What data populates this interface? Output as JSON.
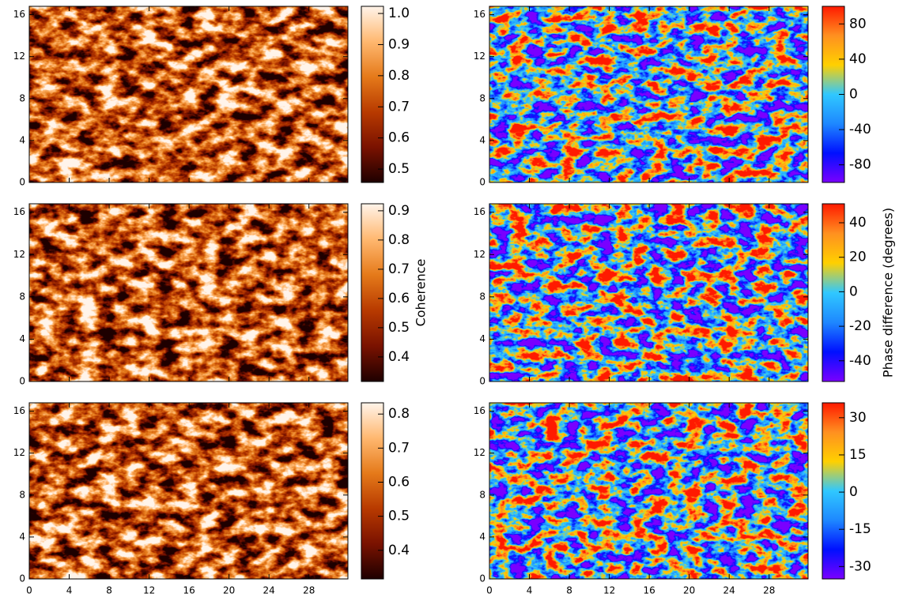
{
  "chart_data": [
    {
      "type": "heatmap",
      "xlim": [
        0,
        31.9
      ],
      "ylim": [
        0,
        16.8
      ],
      "xticks": [
        0,
        4,
        8,
        12,
        16,
        20,
        24,
        28
      ],
      "yticks": [
        0,
        4,
        8,
        12,
        16
      ],
      "show_xtick_labels": false,
      "colormap": [
        "#1e0000",
        "#7a1200",
        "#b83a00",
        "#e57a1a",
        "#ffb870",
        "#fff4ea"
      ],
      "clim": [
        0.457,
        1.023
      ],
      "cticks": [
        {
          "value": 1.0,
          "label": "1.0"
        },
        0.9,
        0.8,
        0.7,
        0.6,
        0.5
      ]
    },
    {
      "type": "heatmap",
      "xlim": [
        0,
        31.9
      ],
      "ylim": [
        0,
        16.8
      ],
      "xticks": [
        0,
        4,
        8,
        12,
        16,
        20,
        24,
        28
      ],
      "yticks": [
        0,
        4,
        8,
        12,
        16
      ],
      "show_xtick_labels": false,
      "colormap": [
        "#7a00ff",
        "#0010ff",
        "#1e88ff",
        "#30c8ff",
        "#ffd000",
        "#ff9020",
        "#ff1a00"
      ],
      "clim": [
        -100,
        100
      ],
      "cticks": [
        80,
        40,
        0,
        -40,
        -80
      ]
    },
    {
      "type": "heatmap",
      "xlim": [
        0,
        31.9
      ],
      "ylim": [
        0,
        16.8
      ],
      "xticks": [
        0,
        4,
        8,
        12,
        16,
        20,
        24,
        28
      ],
      "yticks": [
        0,
        4,
        8,
        12,
        16
      ],
      "show_xtick_labels": false,
      "colormap": [
        "#1e0000",
        "#7a1200",
        "#b83a00",
        "#e57a1a",
        "#ffb870",
        "#fff4ea"
      ],
      "clim": [
        0.316,
        0.924
      ],
      "cticks": [
        0.9,
        0.8,
        0.7,
        0.6,
        0.5,
        0.4
      ],
      "colorbar_label": "Coherence"
    },
    {
      "type": "heatmap",
      "xlim": [
        0,
        31.9
      ],
      "ylim": [
        0,
        16.8
      ],
      "xticks": [
        0,
        4,
        8,
        12,
        16,
        20,
        24,
        28
      ],
      "yticks": [
        0,
        4,
        8,
        12,
        16
      ],
      "show_xtick_labels": false,
      "colormap": [
        "#7a00ff",
        "#0010ff",
        "#1e88ff",
        "#30c8ff",
        "#ffd000",
        "#ff9020",
        "#ff1a00"
      ],
      "clim": [
        -52,
        51
      ],
      "cticks": [
        40,
        20,
        0,
        -20,
        -40
      ],
      "colorbar_label": "Phase difference (degrees)"
    },
    {
      "type": "heatmap",
      "xlim": [
        0,
        31.9
      ],
      "ylim": [
        0,
        16.8
      ],
      "xticks": [
        0,
        4,
        8,
        12,
        16,
        20,
        24,
        28
      ],
      "yticks": [
        0,
        4,
        8,
        12,
        16
      ],
      "show_xtick_labels": true,
      "colormap": [
        "#1e0000",
        "#7a1200",
        "#b83a00",
        "#e57a1a",
        "#ffb870",
        "#fff4ea"
      ],
      "clim": [
        0.316,
        0.833
      ],
      "cticks": [
        0.8,
        0.7,
        0.6,
        0.5,
        0.4
      ]
    },
    {
      "type": "heatmap",
      "xlim": [
        0,
        31.9
      ],
      "ylim": [
        0,
        16.8
      ],
      "xticks": [
        0,
        4,
        8,
        12,
        16,
        20,
        24,
        28
      ],
      "yticks": [
        0,
        4,
        8,
        12,
        16
      ],
      "show_xtick_labels": true,
      "colormap": [
        "#7a00ff",
        "#0010ff",
        "#1e88ff",
        "#30c8ff",
        "#ffd000",
        "#ff9020",
        "#ff1a00"
      ],
      "clim": [
        -35,
        36
      ],
      "cticks": [
        30,
        15,
        0,
        -15,
        -30
      ]
    }
  ]
}
